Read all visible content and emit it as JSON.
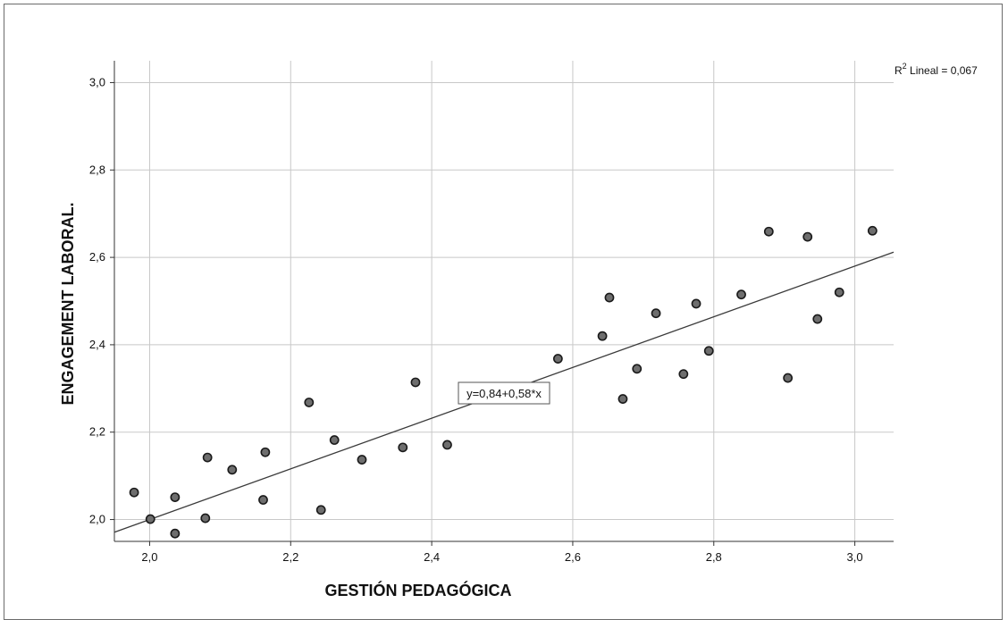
{
  "chart_data": {
    "type": "scatter",
    "xlabel": "GESTIÓN PEDAGÓGICA",
    "ylabel": "ENGAGEMENT LABORAL.",
    "xlim": [
      1.95,
      3.055
    ],
    "ylim": [
      1.95,
      3.05
    ],
    "x_ticks": [
      2.0,
      2.2,
      2.4,
      2.6,
      2.8,
      3.0
    ],
    "y_ticks": [
      2.0,
      2.2,
      2.4,
      2.6,
      2.8,
      3.0
    ],
    "x_tick_labels": [
      "2,0",
      "2,2",
      "2,4",
      "2,6",
      "2,8",
      "3,0"
    ],
    "y_tick_labels": [
      "2,0",
      "2,2",
      "2,4",
      "2,6",
      "2,8",
      "3,0"
    ],
    "grid": true,
    "fit_line": {
      "intercept": 0.84,
      "slope": 0.58,
      "label": "y=0,84+0,58*x"
    },
    "r2_prefix": "R",
    "r2_superscript": "2",
    "r2_suffix": " Lineal = 0,067",
    "points": [
      {
        "x": 1.978,
        "y": 2.062
      },
      {
        "x": 2.001,
        "y": 2.001
      },
      {
        "x": 2.036,
        "y": 2.051
      },
      {
        "x": 2.036,
        "y": 1.968
      },
      {
        "x": 2.079,
        "y": 2.003
      },
      {
        "x": 2.082,
        "y": 2.142
      },
      {
        "x": 2.117,
        "y": 2.114
      },
      {
        "x": 2.161,
        "y": 2.045
      },
      {
        "x": 2.164,
        "y": 2.154
      },
      {
        "x": 2.226,
        "y": 2.268
      },
      {
        "x": 2.243,
        "y": 2.022
      },
      {
        "x": 2.262,
        "y": 2.182
      },
      {
        "x": 2.301,
        "y": 2.137
      },
      {
        "x": 2.359,
        "y": 2.165
      },
      {
        "x": 2.377,
        "y": 2.314
      },
      {
        "x": 2.422,
        "y": 2.171
      },
      {
        "x": 2.579,
        "y": 2.368
      },
      {
        "x": 2.642,
        "y": 2.42
      },
      {
        "x": 2.652,
        "y": 2.508
      },
      {
        "x": 2.671,
        "y": 2.276
      },
      {
        "x": 2.691,
        "y": 2.345
      },
      {
        "x": 2.718,
        "y": 2.472
      },
      {
        "x": 2.757,
        "y": 2.333
      },
      {
        "x": 2.775,
        "y": 2.494
      },
      {
        "x": 2.793,
        "y": 2.386
      },
      {
        "x": 2.839,
        "y": 2.515
      },
      {
        "x": 2.878,
        "y": 2.659
      },
      {
        "x": 2.905,
        "y": 2.324
      },
      {
        "x": 2.933,
        "y": 2.647
      },
      {
        "x": 2.947,
        "y": 2.459
      },
      {
        "x": 2.978,
        "y": 2.52
      },
      {
        "x": 3.025,
        "y": 2.661
      }
    ]
  }
}
